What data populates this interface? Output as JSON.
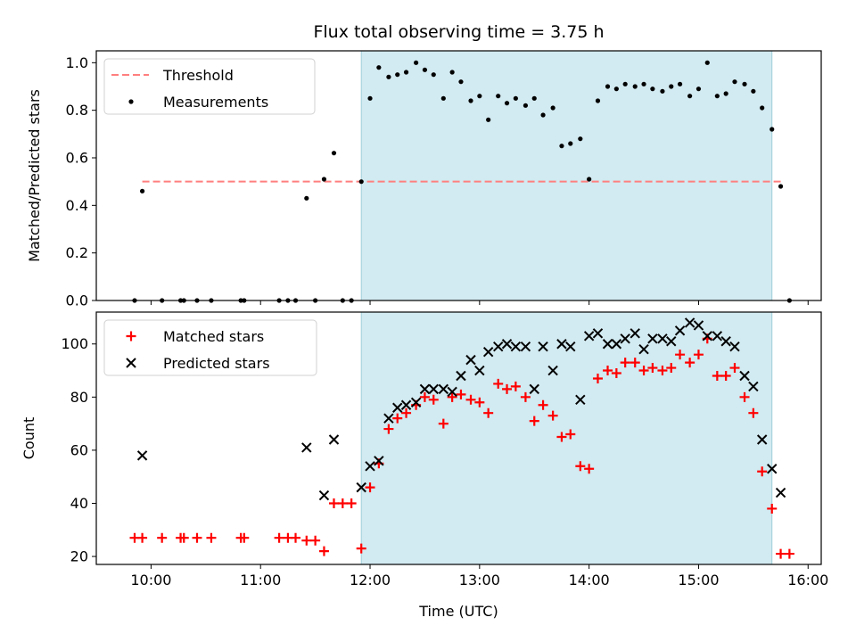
{
  "chart_data": {
    "type": "scatter",
    "title": "Flux total observing time = 3.75 h",
    "xlabel": "Time (UTC)",
    "x_unit": "hours UTC",
    "xlim": [
      9.5,
      16.12
    ],
    "x_ticks": [
      10,
      11,
      12,
      13,
      14,
      15,
      16
    ],
    "x_tick_labels": [
      "10:00",
      "11:00",
      "12:00",
      "13:00",
      "14:00",
      "15:00",
      "16:00"
    ],
    "highlight_band": {
      "x": [
        11.92,
        15.67
      ],
      "color": "#add8e6"
    },
    "colors": {
      "threshold": "#ff7f7f",
      "measurements": "#000000",
      "matched": "#ff0000",
      "predicted": "#000000"
    },
    "panels": [
      {
        "ylabel": "Matched/Predicted stars",
        "ylim": [
          0,
          1.05
        ],
        "y_ticks": [
          0.0,
          0.2,
          0.4,
          0.6,
          0.8,
          1.0
        ],
        "y_tick_labels": [
          "0.0",
          "0.2",
          "0.4",
          "0.6",
          "0.8",
          "1.0"
        ],
        "legend": {
          "placement": "upper-left",
          "entries": [
            "Threshold",
            "Measurements"
          ]
        },
        "series": [
          {
            "name": "Threshold",
            "kind": "dashed-line",
            "x": [
              9.92,
              15.75
            ],
            "y": [
              0.5,
              0.5
            ]
          },
          {
            "name": "Measurements",
            "kind": "dots",
            "x": [
              9.85,
              9.92,
              10.1,
              10.27,
              10.3,
              10.42,
              10.55,
              10.82,
              10.85,
              11.17,
              11.25,
              11.32,
              11.42,
              11.5,
              11.58,
              11.67,
              11.75,
              11.83,
              11.92,
              12.0,
              12.08,
              12.17,
              12.25,
              12.33,
              12.42,
              12.5,
              12.58,
              12.67,
              12.75,
              12.83,
              12.92,
              13.0,
              13.08,
              13.17,
              13.25,
              13.33,
              13.42,
              13.5,
              13.58,
              13.67,
              13.75,
              13.83,
              13.92,
              14.0,
              14.08,
              14.17,
              14.25,
              14.33,
              14.42,
              14.5,
              14.58,
              14.67,
              14.75,
              14.83,
              14.92,
              15.0,
              15.08,
              15.17,
              15.25,
              15.33,
              15.42,
              15.5,
              15.58,
              15.67,
              15.75,
              15.83
            ],
            "y": [
              0,
              0.46,
              0,
              0,
              0,
              0,
              0,
              0,
              0,
              0,
              0,
              0,
              0.43,
              0,
              0.51,
              0.62,
              0,
              0,
              0.5,
              0.85,
              0.98,
              0.94,
              0.95,
              0.96,
              1.0,
              0.97,
              0.95,
              0.85,
              0.96,
              0.92,
              0.84,
              0.86,
              0.76,
              0.86,
              0.83,
              0.85,
              0.82,
              0.85,
              0.78,
              0.81,
              0.65,
              0.66,
              0.68,
              0.51,
              0.84,
              0.9,
              0.89,
              0.91,
              0.9,
              0.91,
              0.89,
              0.88,
              0.9,
              0.91,
              0.86,
              0.89,
              1.0,
              0.86,
              0.87,
              0.92,
              0.91,
              0.88,
              0.81,
              0.72,
              0.48,
              0.0
            ]
          }
        ]
      },
      {
        "ylabel": "Count",
        "ylim": [
          17,
          112
        ],
        "y_ticks": [
          20,
          40,
          60,
          80,
          100
        ],
        "y_tick_labels": [
          "20",
          "40",
          "60",
          "80",
          "100"
        ],
        "legend": {
          "placement": "upper-left",
          "entries": [
            "Matched stars",
            "Predicted stars"
          ]
        },
        "series": [
          {
            "name": "Matched stars",
            "kind": "plus",
            "x": [
              9.85,
              9.92,
              10.1,
              10.27,
              10.3,
              10.42,
              10.55,
              10.82,
              10.85,
              11.17,
              11.25,
              11.32,
              11.42,
              11.5,
              11.58,
              11.67,
              11.75,
              11.83,
              11.92,
              12.0,
              12.08,
              12.17,
              12.25,
              12.33,
              12.42,
              12.5,
              12.58,
              12.67,
              12.75,
              12.83,
              12.92,
              13.0,
              13.08,
              13.17,
              13.25,
              13.33,
              13.42,
              13.5,
              13.58,
              13.67,
              13.75,
              13.83,
              13.92,
              14.0,
              14.08,
              14.17,
              14.25,
              14.33,
              14.42,
              14.5,
              14.58,
              14.67,
              14.75,
              14.83,
              14.92,
              15.0,
              15.08,
              15.17,
              15.25,
              15.33,
              15.42,
              15.5,
              15.58,
              15.67,
              15.75,
              15.83
            ],
            "y": [
              27,
              27,
              27,
              27,
              27,
              27,
              27,
              27,
              27,
              27,
              27,
              27,
              26,
              26,
              22,
              40,
              40,
              40,
              23,
              46,
              55,
              68,
              72,
              74,
              77,
              80,
              79,
              70,
              80,
              81,
              79,
              78,
              74,
              85,
              83,
              84,
              80,
              71,
              77,
              73,
              65,
              66,
              54,
              53,
              87,
              90,
              89,
              93,
              93,
              90,
              91,
              90,
              91,
              96,
              93,
              96,
              102,
              88,
              88,
              91,
              80,
              74,
              52,
              38,
              21,
              21
            ]
          },
          {
            "name": "Predicted stars",
            "kind": "cross",
            "x": [
              9.92,
              11.42,
              11.58,
              11.67,
              11.92,
              12.0,
              12.08,
              12.17,
              12.25,
              12.33,
              12.42,
              12.5,
              12.58,
              12.67,
              12.75,
              12.83,
              12.92,
              13.0,
              13.08,
              13.17,
              13.25,
              13.33,
              13.42,
              13.5,
              13.58,
              13.67,
              13.75,
              13.83,
              13.92,
              14.0,
              14.08,
              14.17,
              14.25,
              14.33,
              14.42,
              14.5,
              14.58,
              14.67,
              14.75,
              14.83,
              14.92,
              15.0,
              15.08,
              15.17,
              15.25,
              15.33,
              15.42,
              15.5,
              15.58,
              15.67,
              15.75
            ],
            "y": [
              58,
              61,
              43,
              64,
              46,
              54,
              56,
              72,
              76,
              77,
              78,
              83,
              83,
              83,
              82,
              88,
              94,
              90,
              97,
              99,
              100,
              99,
              99,
              83,
              99,
              90,
              100,
              99,
              79,
              103,
              104,
              100,
              100,
              102,
              104,
              98,
              102,
              102,
              101,
              105,
              108,
              107,
              103,
              103,
              101,
              99,
              88,
              84,
              64,
              53,
              44
            ]
          }
        ]
      }
    ]
  }
}
